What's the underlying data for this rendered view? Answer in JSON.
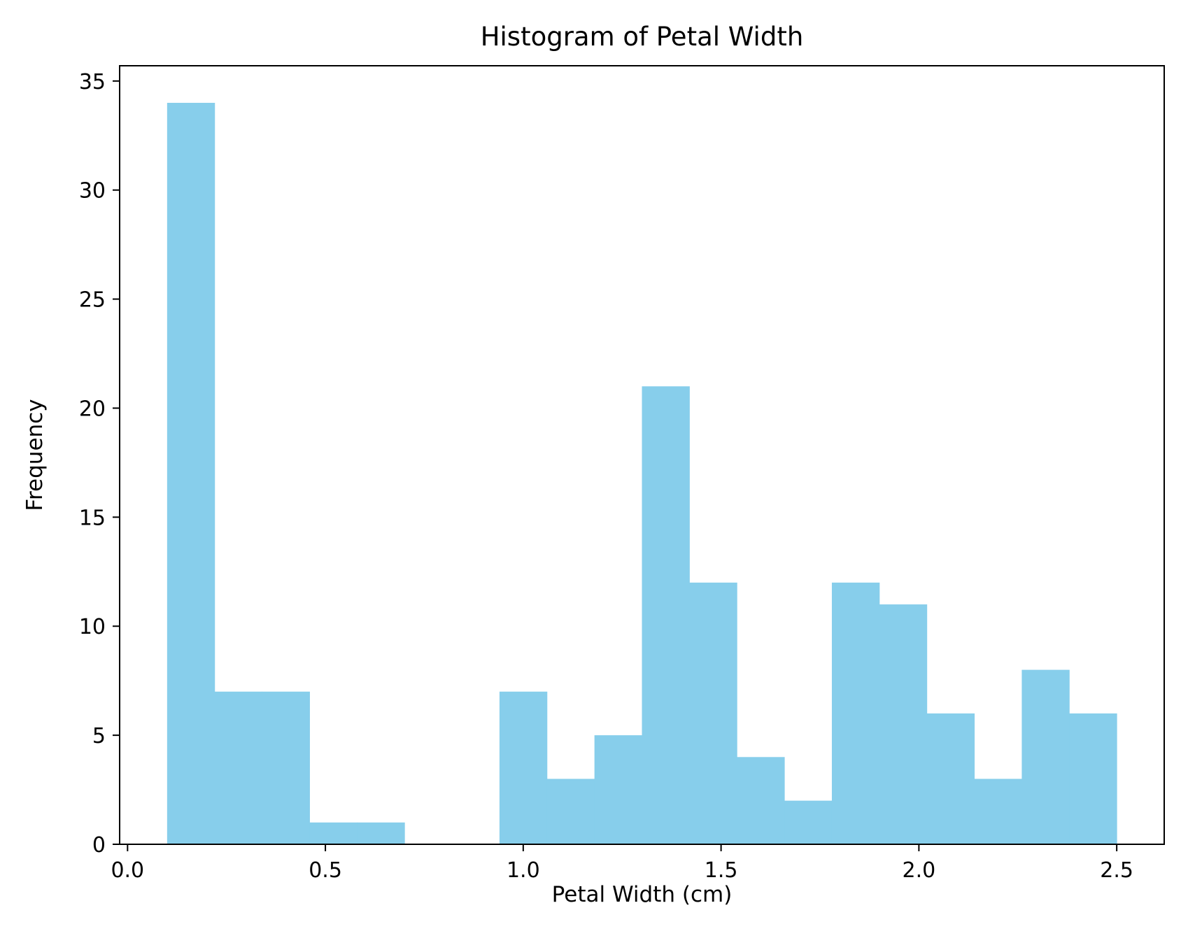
{
  "chart_data": {
    "type": "bar",
    "title": "Histogram of Petal Width",
    "xlabel": "Petal Width (cm)",
    "ylabel": "Frequency",
    "xlim": [
      -0.02,
      2.62
    ],
    "ylim": [
      0,
      35.7
    ],
    "xticks": [
      0.0,
      0.5,
      1.0,
      1.5,
      2.0,
      2.5
    ],
    "xtick_labels": [
      "0.0",
      "0.5",
      "1.0",
      "1.5",
      "2.0",
      "2.5"
    ],
    "yticks": [
      0,
      5,
      10,
      15,
      20,
      25,
      30,
      35
    ],
    "ytick_labels": [
      "0",
      "5",
      "10",
      "15",
      "20",
      "25",
      "30",
      "35"
    ],
    "bin_edges": [
      0.1,
      0.22,
      0.34,
      0.46,
      0.58,
      0.7,
      0.82,
      0.94,
      1.06,
      1.18,
      1.3,
      1.42,
      1.54,
      1.66,
      1.78,
      1.9,
      2.02,
      2.14,
      2.26,
      2.38,
      2.5
    ],
    "values": [
      34,
      7,
      7,
      1,
      1,
      0,
      0,
      7,
      3,
      5,
      21,
      12,
      4,
      2,
      12,
      11,
      6,
      3,
      8,
      6
    ],
    "bar_color": "#87ceeb",
    "grid": false,
    "legend": false
  }
}
